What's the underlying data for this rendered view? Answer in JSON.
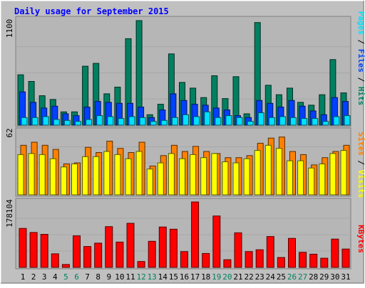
{
  "chart_data": [
    {
      "type": "bar",
      "title": "Daily usage for September 2015",
      "categories": [
        "1",
        "2",
        "3",
        "4",
        "5",
        "6",
        "7",
        "8",
        "9",
        "10",
        "11",
        "12",
        "13",
        "14",
        "15",
        "16",
        "17",
        "18",
        "19",
        "20",
        "21",
        "22",
        "23",
        "24",
        "25",
        "26",
        "27",
        "28",
        "29",
        "30",
        "31"
      ],
      "weekend_days": [
        "5",
        "6",
        "12",
        "13",
        "19",
        "20",
        "26",
        "27"
      ],
      "ylim": [
        0,
        1100
      ],
      "y_tick_label": "1100",
      "right_label_parts": [
        "Pages",
        "Files",
        "Hits"
      ],
      "series": [
        {
          "name": "Hits",
          "color": "#008060",
          "values": [
            530,
            460,
            310,
            270,
            140,
            140,
            620,
            650,
            330,
            400,
            910,
            1100,
            110,
            220,
            750,
            450,
            390,
            290,
            520,
            280,
            510,
            120,
            1080,
            420,
            320,
            390,
            240,
            210,
            320,
            690,
            340
          ]
        },
        {
          "name": "Files",
          "color": "#0040ff",
          "values": [
            350,
            240,
            180,
            200,
            120,
            100,
            190,
            250,
            240,
            230,
            230,
            190,
            80,
            160,
            330,
            260,
            220,
            210,
            180,
            160,
            100,
            80,
            260,
            230,
            190,
            260,
            200,
            150,
            110,
            290,
            250
          ]
        },
        {
          "name": "Pages",
          "color": "#00e0ff",
          "values": [
            80,
            80,
            90,
            60,
            50,
            40,
            60,
            100,
            90,
            70,
            90,
            80,
            40,
            50,
            80,
            110,
            90,
            140,
            80,
            100,
            80,
            40,
            130,
            80,
            90,
            80,
            70,
            70,
            40,
            90,
            100
          ]
        }
      ]
    },
    {
      "type": "bar",
      "categories": [
        "1",
        "2",
        "3",
        "4",
        "5",
        "6",
        "7",
        "8",
        "9",
        "10",
        "11",
        "12",
        "13",
        "14",
        "15",
        "16",
        "17",
        "18",
        "19",
        "20",
        "21",
        "22",
        "23",
        "24",
        "25",
        "26",
        "27",
        "28",
        "29",
        "30",
        "31"
      ],
      "ylim": [
        0,
        62
      ],
      "y_tick_label": "62",
      "right_label_parts": [
        "Sites",
        "Visits"
      ],
      "series": [
        {
          "name": "Visits",
          "color": "#ff8000",
          "values": [
            48,
            51,
            48,
            44,
            30,
            31,
            46,
            41,
            52,
            45,
            41,
            51,
            28,
            38,
            48,
            42,
            47,
            42,
            40,
            36,
            36,
            38,
            50,
            55,
            56,
            42,
            39,
            29,
            36,
            42,
            48
          ]
        },
        {
          "name": "Sites",
          "color": "#ffff00",
          "values": [
            39,
            40,
            39,
            35,
            27,
            30,
            37,
            37,
            42,
            39,
            35,
            42,
            25,
            31,
            40,
            35,
            39,
            36,
            40,
            32,
            31,
            35,
            43,
            48,
            45,
            33,
            33,
            26,
            30,
            40,
            43
          ]
        }
      ]
    },
    {
      "type": "bar",
      "categories": [
        "1",
        "2",
        "3",
        "4",
        "5",
        "6",
        "7",
        "8",
        "9",
        "10",
        "11",
        "12",
        "13",
        "14",
        "15",
        "16",
        "17",
        "18",
        "19",
        "20",
        "21",
        "22",
        "23",
        "24",
        "25",
        "26",
        "27",
        "28",
        "29",
        "30",
        "31"
      ],
      "ylim": [
        0,
        178104
      ],
      "y_tick_label": "178104",
      "right_label_parts": [
        "KBytes"
      ],
      "series": [
        {
          "name": "KBytes",
          "color": "#ff0000",
          "values": [
            106000,
            95000,
            90000,
            37000,
            8000,
            86000,
            57000,
            66000,
            111000,
            69000,
            120000,
            16000,
            71000,
            110000,
            104000,
            43000,
            178104,
            38000,
            140000,
            21000,
            94000,
            43000,
            48000,
            84000,
            27000,
            79000,
            41000,
            36000,
            25000,
            77000,
            50000
          ]
        }
      ]
    }
  ],
  "colors": {
    "frame": "#c0c0c0",
    "plot": "#b6b6b6",
    "title": "#0000ff",
    "weekend_label": "#00805c",
    "weekday_label": "#000000"
  }
}
